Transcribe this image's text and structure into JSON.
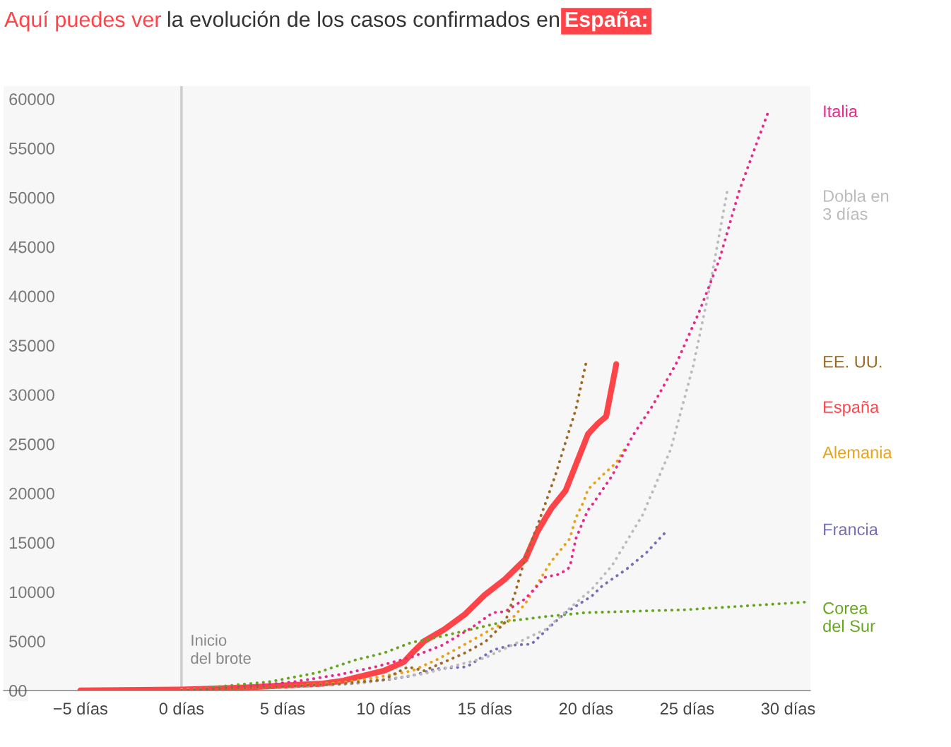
{
  "chart_data": {
    "type": "line",
    "title": "Aquí puedes ver la evolución de los casos confirmados en España:",
    "xlim": [
      -8.8,
      31.1
    ],
    "ylim": [
      0,
      61300
    ],
    "xticks": [
      {
        "value": -5,
        "label": "−5 días"
      },
      {
        "value": 0,
        "label": "0 días"
      },
      {
        "value": 5,
        "label": "5 días"
      },
      {
        "value": 10,
        "label": "10 días"
      },
      {
        "value": 15,
        "label": "15 días"
      },
      {
        "value": 20,
        "label": "20 días"
      },
      {
        "value": 25,
        "label": "25 días"
      },
      {
        "value": 30,
        "label": "30 días"
      }
    ],
    "yticks": [
      {
        "value": 0,
        "label": "00"
      },
      5000,
      10000,
      15000,
      20000,
      25000,
      30000,
      35000,
      40000,
      45000,
      50000,
      55000,
      60000
    ],
    "grid": false,
    "legend": false,
    "marker": "none",
    "ref_lines": [
      {
        "axis": "x",
        "value": 0,
        "label": "Inicio\ndel brote",
        "color": "#cccccc",
        "line_style": "solid"
      }
    ],
    "series": [
      {
        "name": "Corea\ndel Sur",
        "color": "#66a61e",
        "line_style": "dotted",
        "x": [
          0,
          2.1,
          4.4,
          6.7,
          8.6,
          10,
          11.4,
          12,
          13.7,
          16,
          18,
          20,
          25,
          31.1
        ],
        "values": [
          0,
          450,
          900,
          1800,
          3100,
          3800,
          4900,
          5100,
          5900,
          7000,
          7500,
          7900,
          8200,
          9000
        ]
      },
      {
        "name": "Francia",
        "color": "#7570b3",
        "line_style": "dotted",
        "x": [
          5.6,
          8.5,
          10.2,
          11.4,
          12.6,
          14.1,
          14.5,
          15.4,
          16.3,
          17.3,
          18.5,
          19,
          20.3,
          20.8,
          22,
          23,
          24
        ],
        "values": [
          400,
          700,
          1100,
          1500,
          2200,
          2400,
          2900,
          4100,
          4600,
          4700,
          7000,
          7900,
          9600,
          10600,
          12300,
          14000,
          16200
        ]
      },
      {
        "name": "Dobla en\n3 días",
        "color": "#bbbbbb",
        "line_style": "dotted",
        "x": [
          0,
          6,
          9,
          12,
          15,
          18,
          20.3,
          21.3,
          22.8,
          24.2,
          25.3,
          26.1,
          27
        ],
        "values": [
          100,
          400,
          800,
          1700,
          3300,
          6200,
          10300,
          12700,
          17800,
          24500,
          32900,
          40700,
          50800
        ]
      },
      {
        "name": "Alemania",
        "color": "#e8a21a",
        "line_style": "dotted",
        "x": [
          0,
          5,
          7.9,
          9.6,
          11.4,
          12.7,
          14.3,
          15.4,
          16.3,
          17,
          18.25,
          19.2,
          19.5,
          19.9,
          20.1,
          20.8,
          21.5,
          22
        ],
        "values": [
          0,
          400,
          800,
          1300,
          2000,
          3200,
          5000,
          6300,
          7200,
          8800,
          13000,
          15400,
          17500,
          19200,
          20400,
          21800,
          23100,
          24800
        ]
      },
      {
        "name": "Italia",
        "color": "#e7298a",
        "line_style": "dotted",
        "x": [
          0,
          3.2,
          5.6,
          7.9,
          9.6,
          11.4,
          12.9,
          14.3,
          15.4,
          16,
          17,
          18,
          18.7,
          19.2,
          19.5,
          20.1,
          20.3,
          21.3,
          22.3,
          23.3,
          24.5,
          25.6,
          26.6,
          27.6,
          29
        ],
        "values": [
          0,
          400,
          900,
          1650,
          2400,
          3400,
          4600,
          6300,
          7900,
          8000,
          9300,
          11500,
          11800,
          12500,
          15400,
          18300,
          18800,
          21800,
          25800,
          28900,
          33300,
          38400,
          43700,
          50800,
          58600
        ]
      },
      {
        "name": "EE. UU.",
        "color": "#9c6a25",
        "line_style": "dotted",
        "x": [
          0,
          5,
          8,
          10,
          11.2,
          12,
          13,
          14,
          15,
          16,
          16.5,
          17,
          17.56,
          18,
          18.5,
          18.95,
          19.5,
          20
        ],
        "values": [
          0,
          400,
          700,
          1100,
          2400,
          2000,
          2900,
          3800,
          4900,
          6900,
          9900,
          13500,
          16500,
          19000,
          21900,
          24900,
          28500,
          33200
        ]
      },
      {
        "name": "España",
        "color": "#ff4449",
        "line_style": "solid",
        "x": [
          -5,
          0,
          3,
          5,
          7,
          8,
          9,
          10,
          11,
          11.5,
          12,
          13,
          14,
          15,
          16,
          17,
          17.6,
          18,
          18.3,
          19,
          20.1,
          20.6,
          21,
          21.5
        ],
        "values": [
          0,
          100,
          300,
          500,
          700,
          1000,
          1500,
          2000,
          2900,
          4000,
          5000,
          6200,
          7700,
          9700,
          11300,
          13300,
          16100,
          17500,
          18500,
          20300,
          26000,
          27100,
          27800,
          33100
        ]
      }
    ]
  }
}
